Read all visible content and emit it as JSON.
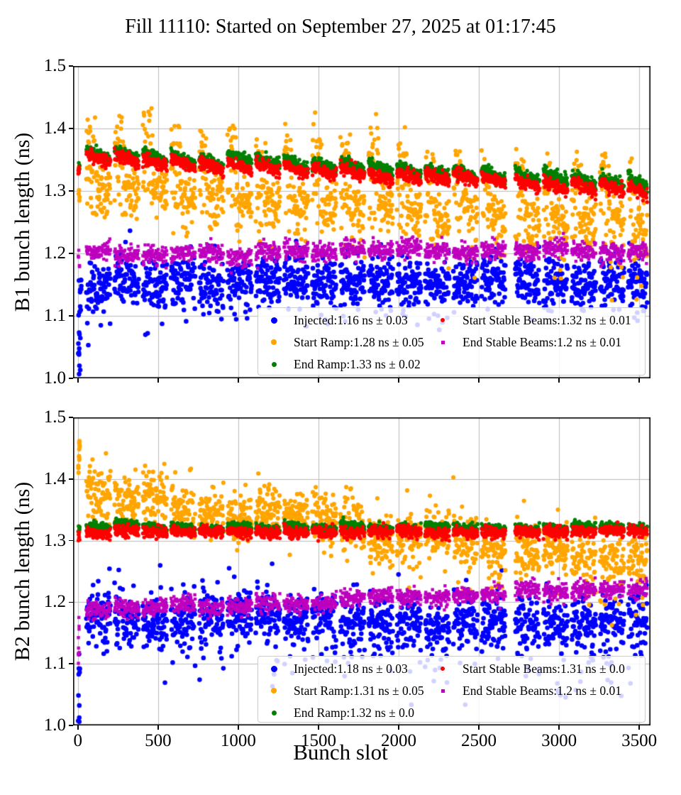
{
  "figure": {
    "title": "Fill 11110: Started on September 27, 2025 at 01:17:45",
    "xlabel": "Bunch slot"
  },
  "chart_data": [
    {
      "type": "scatter",
      "subplot": "B1",
      "ylabel": "B1 bunch length (ns)",
      "xlabel": "Bunch slot",
      "xlim": [
        -30,
        3570
      ],
      "ylim": [
        1.0,
        1.5
      ],
      "xticks": [
        0,
        500,
        1000,
        1500,
        2000,
        2500,
        3000,
        3500
      ],
      "yticks": [
        1.0,
        1.1,
        1.2,
        1.3,
        1.4,
        1.5
      ],
      "grid": true,
      "grid_color": "#bbbbbb",
      "legend_position": "lower-right-inside",
      "seed": 42,
      "sample_step": 2,
      "slot_range": [
        40,
        3551
      ],
      "trains": [
        [
          53,
          152
        ],
        [
          229,
          152
        ],
        [
          405,
          152
        ],
        [
          581,
          152
        ],
        [
          757,
          152
        ],
        [
          933,
          152
        ],
        [
          1109,
          152
        ],
        [
          1285,
          152
        ],
        [
          1461,
          152
        ],
        [
          1637,
          152
        ],
        [
          1813,
          152
        ],
        [
          1989,
          152
        ],
        [
          2165,
          152
        ],
        [
          2341,
          152
        ],
        [
          2517,
          150
        ],
        [
          2727,
          152
        ],
        [
          2903,
          152
        ],
        [
          3079,
          152
        ],
        [
          3255,
          152
        ],
        [
          3431,
          120
        ]
      ],
      "series": [
        {
          "name": "injected",
          "label": "Injected:1.16 ns ± 0.03",
          "mean": 1.16,
          "err": 0.03,
          "color": "#0000ff",
          "marker": "circle",
          "radius": 3.3,
          "legend_size": 9,
          "trend": [
            1.152,
            1.164
          ],
          "std": 0.018,
          "train_slope": 0,
          "train_jitter": 0.005,
          "tail_down": {
            "prob": 0.3,
            "scale": [
              0.03,
              0.02
            ]
          },
          "tail_up": {
            "prob": 0.05,
            "scale": 0.03
          }
        },
        {
          "name": "start_ramp",
          "label": "Start Ramp:1.28 ns ± 0.05",
          "mean": 1.28,
          "err": 0.05,
          "color": "#ffa500",
          "marker": "circle",
          "radius": 3.1,
          "legend_size": 8,
          "trend": [
            1.312,
            1.238
          ],
          "std": 0.02,
          "train_slope": 0,
          "train_jitter": 0.006,
          "spike": {
            "frac": 0.4,
            "prob": 0.7,
            "min": 0.04,
            "max": 0.105
          },
          "tail_down": {
            "prob": 0.3,
            "scale": [
              0.012,
              0.045
            ]
          }
        },
        {
          "name": "end_ramp",
          "label": "End Ramp:1.33 ns ± 0.02",
          "mean": 1.33,
          "err": 0.02,
          "color": "#008000",
          "marker": "circle",
          "radius": 2.7,
          "legend_size": 7,
          "trend": [
            1.362,
            1.314
          ],
          "std": 0.0045,
          "train_slope": 0.013,
          "train_jitter": 0.002
        },
        {
          "name": "start_stable",
          "label": "Start Stable Beams:1.32 ns ± 0.01",
          "mean": 1.32,
          "err": 0.01,
          "color": "#ff0000",
          "marker": "circle",
          "radius": 2.7,
          "legend_size": 6,
          "trend": [
            1.351,
            1.304
          ],
          "std": 0.005,
          "train_slope": 0.013,
          "train_jitter": 0.002
        },
        {
          "name": "end_stable",
          "label": "End Stable Beams:1.2 ns ± 0.01",
          "mean": 1.2,
          "err": 0.01,
          "color": "#bf00bf",
          "marker": "square",
          "radius": 2.2,
          "legend_size": 5,
          "trend": [
            1.198,
            1.207
          ],
          "std": 0.0075,
          "train_slope": 0,
          "train_jitter": 0.003
        }
      ],
      "edge_points": [
        {
          "series": "injected",
          "count": 14,
          "slots": [
            2,
            16
          ],
          "range": [
            1.0,
            1.115
          ]
        },
        {
          "series": "injected",
          "count": 8,
          "slots": [
            4,
            22
          ],
          "range": [
            1.1,
            1.185
          ]
        },
        {
          "series": "end_stable",
          "count": 6,
          "slots": [
            2,
            14
          ],
          "range": [
            1.178,
            1.212
          ]
        },
        {
          "series": "start_ramp",
          "count": 6,
          "slots": [
            2,
            12
          ],
          "range": [
            1.25,
            1.36
          ]
        },
        {
          "series": "start_stable",
          "count": 8,
          "slots": [
            2,
            12
          ],
          "range": [
            1.322,
            1.34
          ]
        },
        {
          "series": "end_ramp",
          "count": 6,
          "slots": [
            2,
            12
          ],
          "range": [
            1.334,
            1.352
          ]
        }
      ]
    },
    {
      "type": "scatter",
      "subplot": "B2",
      "ylabel": "B2 bunch length (ns)",
      "xlabel": "Bunch slot",
      "xlim": [
        -30,
        3570
      ],
      "ylim": [
        1.0,
        1.5
      ],
      "xticks": [
        0,
        500,
        1000,
        1500,
        2000,
        2500,
        3000,
        3500
      ],
      "yticks": [
        1.0,
        1.1,
        1.2,
        1.3,
        1.4,
        1.5
      ],
      "grid": true,
      "grid_color": "#bbbbbb",
      "legend_position": "lower-right-inside",
      "seed": 1337,
      "sample_step": 2,
      "slot_range": [
        40,
        3551
      ],
      "trains": [
        [
          53,
          152
        ],
        [
          229,
          152
        ],
        [
          405,
          152
        ],
        [
          581,
          152
        ],
        [
          757,
          152
        ],
        [
          933,
          152
        ],
        [
          1109,
          152
        ],
        [
          1285,
          152
        ],
        [
          1461,
          152
        ],
        [
          1637,
          152
        ],
        [
          1813,
          152
        ],
        [
          1989,
          152
        ],
        [
          2165,
          152
        ],
        [
          2341,
          152
        ],
        [
          2517,
          150
        ],
        [
          2727,
          152
        ],
        [
          2903,
          152
        ],
        [
          3079,
          152
        ],
        [
          3255,
          152
        ],
        [
          3431,
          120
        ]
      ],
      "series": [
        {
          "name": "injected",
          "label": "Injected:1.18 ns ± 0.03",
          "mean": 1.18,
          "err": 0.03,
          "color": "#0000ff",
          "marker": "circle",
          "radius": 3.3,
          "legend_size": 9,
          "trend": [
            1.178,
            1.168
          ],
          "std": 0.02,
          "train_slope": 0,
          "train_jitter": 0.005,
          "tail_down": {
            "prob": 0.32,
            "scale": [
              0.02,
              0.05
            ]
          },
          "tail_up": {
            "prob": 0.08,
            "scale": 0.025
          }
        },
        {
          "name": "start_ramp",
          "label": "Start Ramp:1.31 ns ± 0.05",
          "mean": 1.31,
          "err": 0.05,
          "color": "#ffa500",
          "marker": "circle",
          "radius": 3.1,
          "legend_size": 8,
          "trend": [
            1.374,
            1.268
          ],
          "std": 0.02,
          "train_slope": 0,
          "train_jitter": 0.006,
          "tail_up": {
            "prob": 0.1,
            "scale": 0.022
          },
          "tail_down": {
            "prob": 0.25,
            "scale": [
              0.008,
              0.04
            ]
          }
        },
        {
          "name": "end_ramp",
          "label": "End Ramp:1.32 ns ± 0.0",
          "mean": 1.32,
          "err": 0.0,
          "color": "#008000",
          "marker": "circle",
          "radius": 2.7,
          "legend_size": 7,
          "trend": [
            1.322,
            1.322
          ],
          "std": 0.0035,
          "train_slope": 0.004,
          "train_jitter": 0.0015
        },
        {
          "name": "start_stable",
          "label": "Start Stable Beams:1.31 ns ± 0.0",
          "mean": 1.31,
          "err": 0.0,
          "color": "#ff0000",
          "marker": "circle",
          "radius": 2.7,
          "legend_size": 6,
          "trend": [
            1.3135,
            1.3145
          ],
          "std": 0.0045,
          "train_slope": 0.004,
          "train_jitter": 0.0015
        },
        {
          "name": "end_stable",
          "label": "End Stable Beams:1.2 ns ± 0.01",
          "mean": 1.2,
          "err": 0.01,
          "color": "#bf00bf",
          "marker": "square",
          "radius": 2.2,
          "legend_size": 5,
          "trend": [
            1.188,
            1.223
          ],
          "std": 0.007,
          "train_slope": 0,
          "train_jitter": 0.003
        }
      ],
      "edge_points": [
        {
          "series": "start_ramp",
          "count": 12,
          "slots": [
            2,
            12
          ],
          "range": [
            1.4,
            1.47
          ]
        },
        {
          "series": "injected",
          "count": 10,
          "slots": [
            2,
            14
          ],
          "range": [
            1.0,
            1.12
          ]
        },
        {
          "series": "end_stable",
          "count": 9,
          "slots": [
            2,
            10
          ],
          "range": [
            1.095,
            1.185
          ]
        },
        {
          "series": "start_stable",
          "count": 8,
          "slots": [
            2,
            12
          ],
          "range": [
            1.3,
            1.316
          ]
        },
        {
          "series": "end_ramp",
          "count": 6,
          "slots": [
            2,
            12
          ],
          "range": [
            1.314,
            1.326
          ]
        }
      ]
    }
  ]
}
